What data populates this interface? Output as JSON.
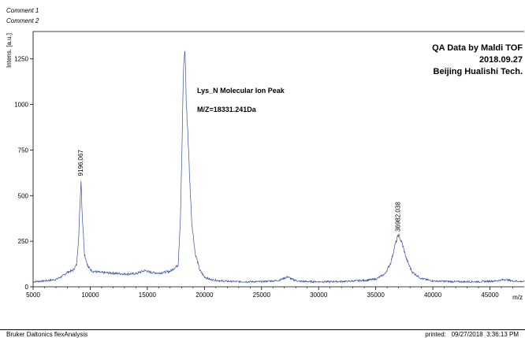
{
  "header": {
    "comment1": "Comment 1",
    "comment2": "Comment 2"
  },
  "footer": {
    "left": "Bruker Daltonics flexAnalysis",
    "printed_label": "printed:",
    "printed_value": "09/27/2018  3:36:13 PM"
  },
  "colors": {
    "spectrum": "#3b4fa0",
    "axis": "#000000"
  },
  "chart_data": {
    "type": "line",
    "title": "",
    "xlabel": "m/z",
    "ylabel": "Intens. [a.u.]",
    "xlim": [
      5000,
      48000
    ],
    "ylim": [
      0,
      1400
    ],
    "xticks": [
      5000,
      10000,
      15000,
      20000,
      25000,
      30000,
      35000,
      40000,
      45000
    ],
    "yticks": [
      0,
      250,
      500,
      750,
      1000,
      1250
    ],
    "grid": false,
    "info_block": [
      "QA Data by Maldi TOF",
      "2018.09.27",
      "Beijing Hualishi Tech."
    ],
    "annotations": [
      "Lys_N  Molecular Ion Peak",
      "M/Z=18331.241Da"
    ],
    "peak_labels": [
      {
        "x": 9196.067,
        "y": 590,
        "label": "9196.067"
      },
      {
        "x": 36982.038,
        "y": 285,
        "label": "36982.038"
      }
    ],
    "series": [
      {
        "x": [
          5000,
          6000,
          7000,
          7600,
          8000,
          8500,
          8800,
          9000,
          9100,
          9196,
          9300,
          9500,
          9800,
          10200,
          11000,
          12000,
          13000,
          14000,
          14800,
          15200,
          16000,
          17000,
          17700,
          17900,
          18050,
          18150,
          18250,
          18331,
          18420,
          18550,
          18700,
          18900,
          19200,
          19600,
          20000,
          20500,
          21500,
          23000,
          25000,
          26500,
          27300,
          27700,
          28300,
          29500,
          31000,
          32500,
          34000,
          35000,
          35800,
          36300,
          36700,
          36982,
          37300,
          37700,
          38200,
          39000,
          40000,
          42000,
          44000,
          45500,
          46300,
          47000,
          48000
        ],
        "y": [
          28,
          32,
          40,
          60,
          80,
          90,
          120,
          280,
          450,
          590,
          400,
          180,
          110,
          85,
          78,
          75,
          70,
          72,
          90,
          80,
          75,
          85,
          120,
          380,
          800,
          1150,
          1290,
          1250,
          980,
          850,
          600,
          350,
          180,
          90,
          55,
          40,
          32,
          28,
          28,
          35,
          55,
          40,
          30,
          28,
          28,
          30,
          35,
          42,
          70,
          130,
          230,
          285,
          240,
          150,
          80,
          45,
          32,
          28,
          28,
          32,
          40,
          32,
          28
        ]
      }
    ]
  }
}
